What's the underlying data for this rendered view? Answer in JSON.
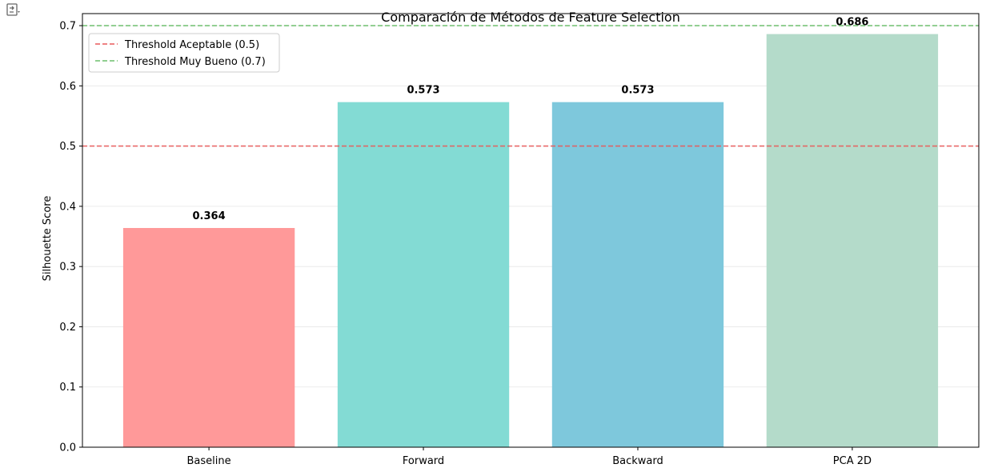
{
  "toolbar": {
    "output_icon": "output-expand-icon"
  },
  "chart_data": {
    "type": "bar",
    "title": "Comparación de Métodos de Feature Selection",
    "xlabel": "",
    "ylabel": "Silhouette Score",
    "categories": [
      "Baseline",
      "Forward",
      "Backward",
      "PCA 2D"
    ],
    "values": [
      0.364,
      0.573,
      0.573,
      0.686
    ],
    "value_labels": [
      "0.364",
      "0.573",
      "0.573",
      "0.686"
    ],
    "colors": [
      "#ff9999",
      "#83dbd4",
      "#7ec8dc",
      "#b4dbca"
    ],
    "ylim": [
      0,
      0.72
    ],
    "yticks": [
      "0.0",
      "0.1",
      "0.2",
      "0.3",
      "0.4",
      "0.5",
      "0.6",
      "0.7"
    ],
    "ytick_values": [
      0,
      0.1,
      0.2,
      0.3,
      0.4,
      0.5,
      0.6,
      0.7
    ],
    "grid": "horizontal",
    "legend_position": "top-left",
    "reference_lines": [
      {
        "name": "Threshold Aceptable (0.5)",
        "value": 0.5,
        "color": "#e8595a"
      },
      {
        "name": "Threshold Muy Bueno (0.7)",
        "value": 0.7,
        "color": "#6cbf6c"
      }
    ]
  }
}
